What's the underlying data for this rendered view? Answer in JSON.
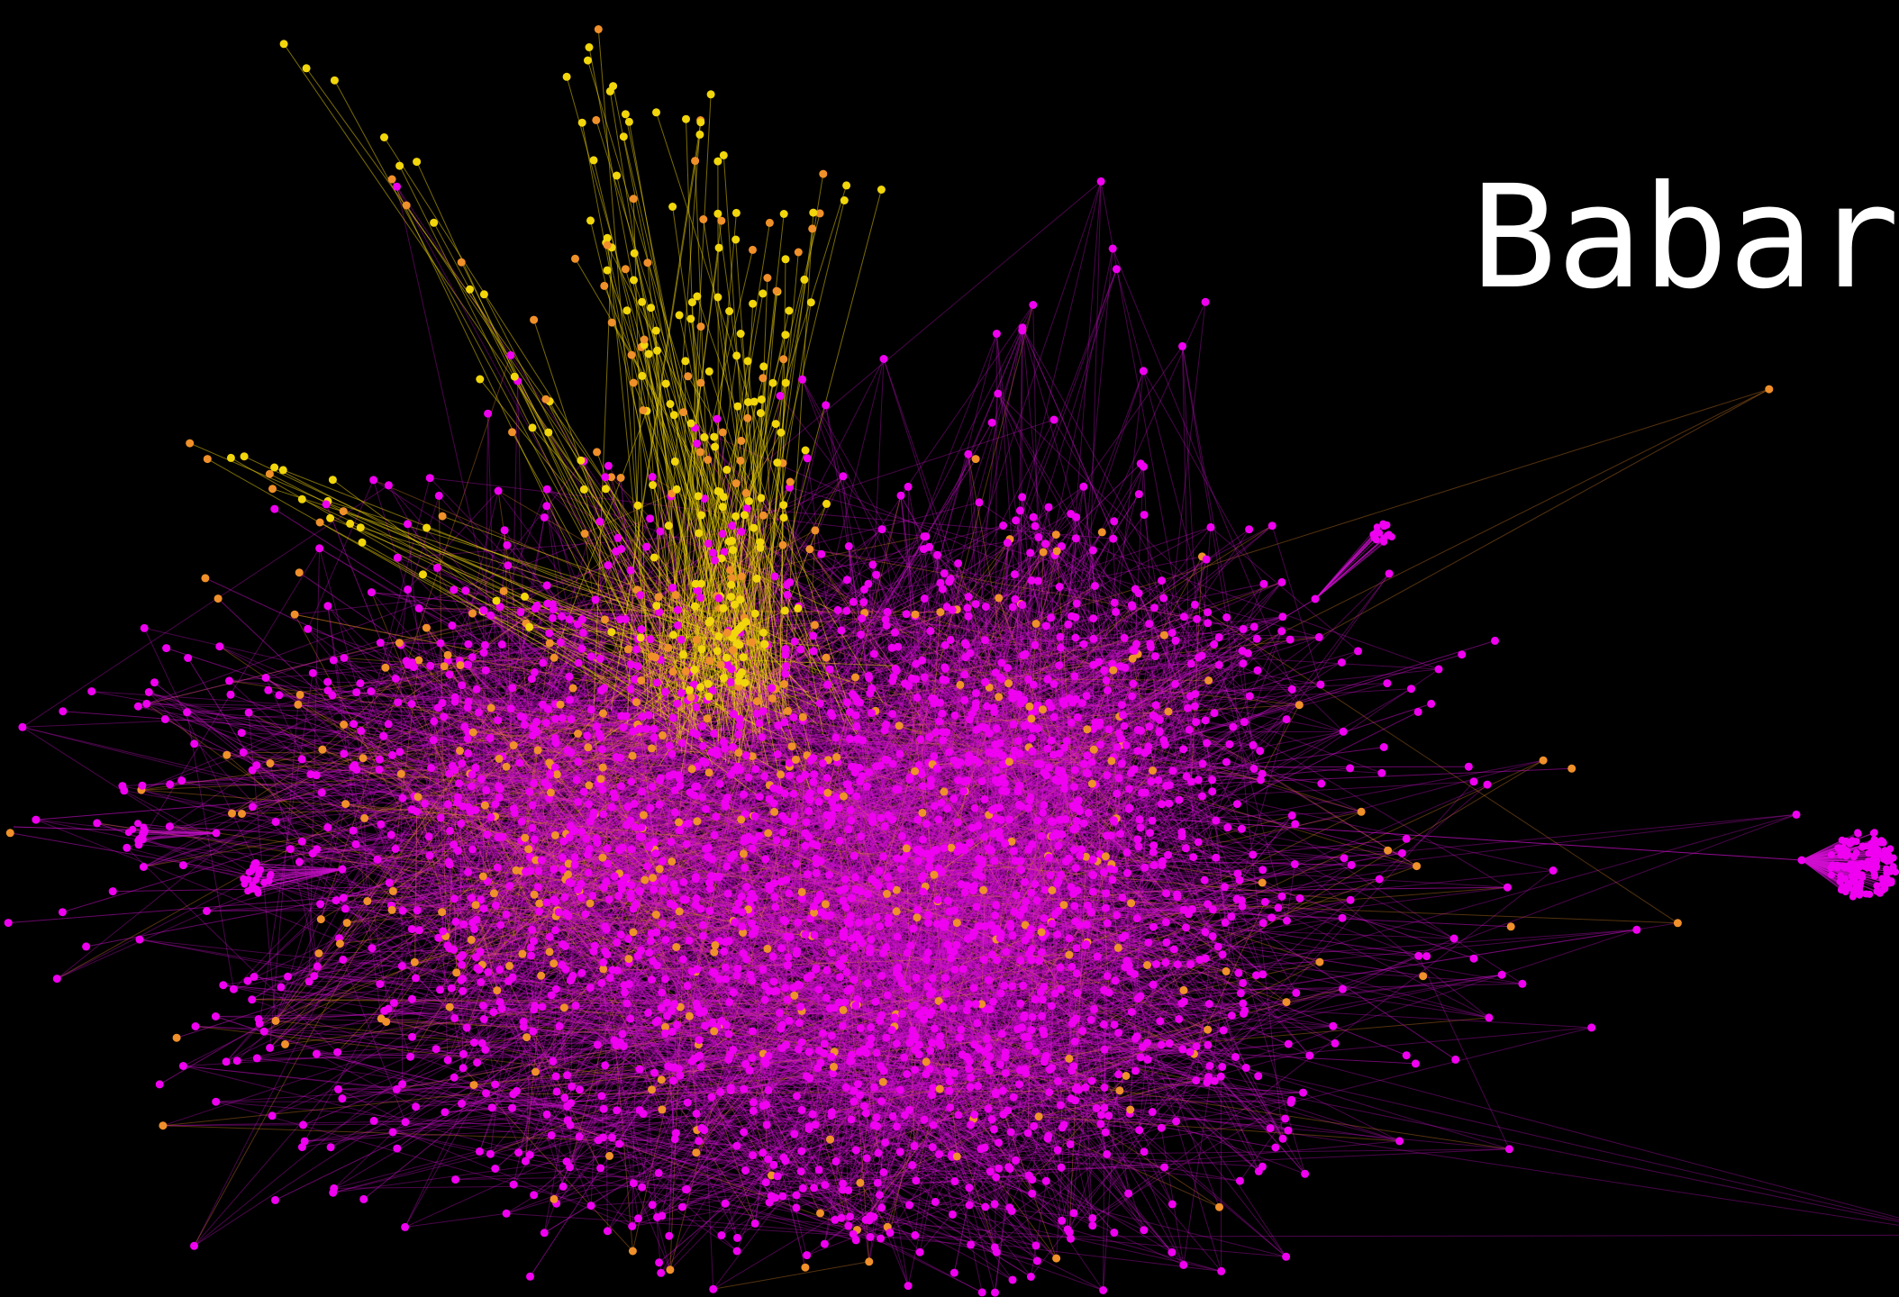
{
  "title": "Babar"
}
